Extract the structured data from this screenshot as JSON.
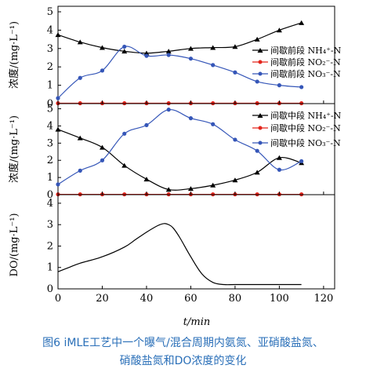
{
  "figure": {
    "xlabel": "t/min",
    "x_ticks": [
      "0",
      "20",
      "40",
      "60",
      "80",
      "100",
      "120"
    ],
    "caption_line1": "图6   iMLE工艺中一个曝气/混合周期内氨氮、亚硝酸盐氮、",
    "caption_line2": "硝酸盐氮和DO浓度的变化"
  },
  "colors": {
    "nh4": "#000000",
    "no2": "#e3241b",
    "no3": "#3556b8",
    "do": "#000000"
  },
  "chart_data": [
    {
      "type": "line",
      "panel": "top",
      "ylabel": "浓度/(mg·L⁻¹)",
      "xlim": [
        0,
        125
      ],
      "ylim": [
        0,
        5.3
      ],
      "y_ticks": [
        "0",
        "1",
        "2",
        "3",
        "4",
        "5"
      ],
      "grid": false,
      "legend_position": "right",
      "series": [
        {
          "name": "间歇前段 NH₄⁺-N",
          "key": "nh4",
          "marker": "triangle",
          "x": [
            0,
            10,
            20,
            30,
            40,
            50,
            60,
            70,
            80,
            90,
            100,
            110
          ],
          "y": [
            3.75,
            3.35,
            3.05,
            2.85,
            2.75,
            2.85,
            3.0,
            3.05,
            3.1,
            3.5,
            4.0,
            4.4
          ]
        },
        {
          "name": "间歇前段 NO₂⁻-N",
          "key": "no2",
          "marker": "circle",
          "x": [
            0,
            10,
            20,
            30,
            40,
            50,
            60,
            70,
            80,
            90,
            100,
            110
          ],
          "y": [
            0.02,
            0.02,
            0.02,
            0.02,
            0.02,
            0.02,
            0.02,
            0.02,
            0.02,
            0.02,
            0.02,
            0.02
          ]
        },
        {
          "name": "间歇前段 NO₃⁻-N",
          "key": "no3",
          "marker": "circle",
          "x": [
            0,
            10,
            20,
            30,
            40,
            50,
            60,
            70,
            80,
            90,
            100,
            110
          ],
          "y": [
            0.3,
            1.4,
            1.8,
            3.1,
            2.6,
            2.65,
            2.45,
            2.1,
            1.7,
            1.2,
            1.0,
            0.9
          ]
        }
      ]
    },
    {
      "type": "line",
      "panel": "middle",
      "ylabel": "浓度/(mg·L⁻¹)",
      "xlim": [
        0,
        125
      ],
      "ylim": [
        0,
        5.3
      ],
      "y_ticks": [
        "0",
        "1",
        "2",
        "3",
        "4",
        "5"
      ],
      "grid": false,
      "legend_position": "top-right",
      "series": [
        {
          "name": "间歇中段 NH₄⁺-N",
          "key": "nh4",
          "marker": "triangle",
          "x": [
            0,
            10,
            20,
            30,
            40,
            50,
            60,
            70,
            80,
            90,
            100,
            110
          ],
          "y": [
            3.8,
            3.3,
            2.75,
            1.7,
            0.9,
            0.3,
            0.35,
            0.55,
            0.85,
            1.3,
            2.15,
            1.85
          ]
        },
        {
          "name": "间歇中段 NO₂⁻-N",
          "key": "no2",
          "marker": "circle",
          "x": [
            0,
            10,
            20,
            30,
            40,
            50,
            60,
            70,
            80,
            90,
            100,
            110
          ],
          "y": [
            0.02,
            0.02,
            0.02,
            0.02,
            0.02,
            0.02,
            0.02,
            0.02,
            0.02,
            0.02,
            0.02,
            0.02
          ]
        },
        {
          "name": "间歇中段 NO₃⁻-N",
          "key": "no3",
          "marker": "circle",
          "x": [
            0,
            10,
            20,
            30,
            40,
            50,
            60,
            70,
            80,
            90,
            100,
            110
          ],
          "y": [
            0.6,
            1.4,
            2.0,
            3.55,
            4.05,
            4.95,
            4.45,
            4.1,
            3.2,
            2.55,
            1.45,
            1.95
          ]
        }
      ]
    },
    {
      "type": "line",
      "panel": "bottom",
      "ylabel": "DO/(mg·L⁻¹)",
      "xlim": [
        0,
        125
      ],
      "ylim": [
        0,
        4.4
      ],
      "y_ticks": [
        "0",
        "1",
        "2",
        "3",
        "4"
      ],
      "grid": false,
      "series": [
        {
          "key": "do",
          "marker": "none",
          "x": [
            0,
            5,
            10,
            20,
            30,
            35,
            40,
            45,
            48,
            50,
            52,
            55,
            60,
            65,
            70,
            75,
            80,
            90,
            100,
            110
          ],
          "y": [
            0.8,
            1.0,
            1.2,
            1.5,
            1.95,
            2.3,
            2.65,
            2.95,
            3.05,
            3.0,
            2.85,
            2.4,
            1.5,
            0.7,
            0.3,
            0.2,
            0.2,
            0.2,
            0.2,
            0.2
          ]
        }
      ]
    }
  ]
}
